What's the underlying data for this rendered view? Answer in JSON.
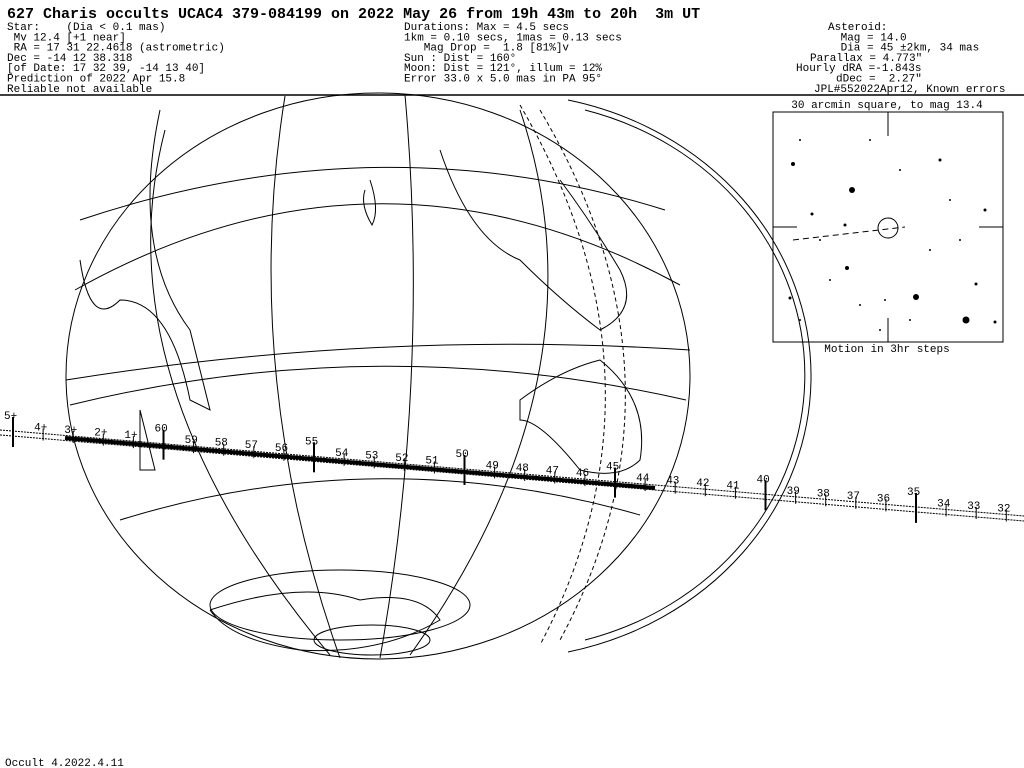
{
  "header": {
    "title": "627 Charis occults UCAC4 379-084199 on 2022 May 26 from 19h 43m to 20h  3m UT",
    "star_lines": [
      "Star:    (Dia < 0.1 mas)",
      " Mv 12.4 [+1 near]",
      " RA = 17 31 22.4618 (astrometric)",
      "Dec = -14 12 38.318",
      "[of Date: 17 32 39, -14 13 40]",
      "Prediction of 2022 Apr 15.8",
      "Reliable not available"
    ],
    "event_lines": [
      "Durations: Max = 4.5 secs",
      "1km = 0.10 secs, 1mas = 0.13 secs",
      "   Mag Drop =  1.8 [81%]v",
      "Sun : Dist = 160°",
      "Moon: Dist = 121°, illum = 12%",
      "Error 33.0 x 5.0 mas in PA 95°"
    ],
    "asteroid_lines": [
      "Asteroid:",
      " Mag = 14.0",
      " Dia = 45 ±2km, 34 mas",
      "Parallax = 4.773\"",
      "Hourly dRA =-1.843s",
      "dDec =  2.27\"",
      "JPL#552022Apr12, Known errors"
    ]
  },
  "path_labels": [
    "5+",
    "4+",
    "3+",
    "2+",
    "1+",
    "60",
    "59",
    "58",
    "57",
    "56",
    "55",
    "54",
    "53",
    "52",
    "51",
    "50",
    "49",
    "48",
    "47",
    "46",
    "45",
    "44",
    "43",
    "42",
    "41",
    "40",
    "39",
    "38",
    "37",
    "36",
    "35",
    "34",
    "33",
    "32"
  ],
  "finder": {
    "title": "30 arcmin square, to mag 13.4",
    "caption": "Motion in 3hr steps"
  },
  "footer": "Occult 4.2022.4.11"
}
